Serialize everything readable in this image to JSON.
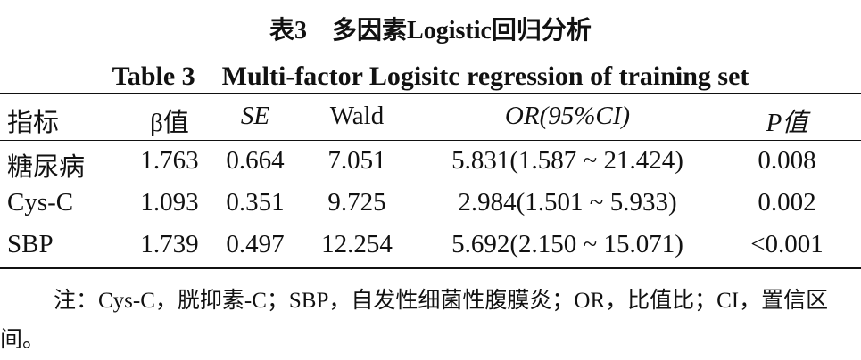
{
  "title_cn": "表3　多因素Logistic回归分析",
  "title_en": "Table 3　Multi-factor Logisitc regression of training set",
  "table": {
    "header": [
      "指标",
      "β值",
      "SE",
      "Wald",
      "OR(95%CI)",
      "P值"
    ],
    "rows": [
      [
        "糖尿病",
        "1.763",
        "0.664",
        "7.051",
        "5.831(1.587 ~ 21.424)",
        "0.008"
      ],
      [
        "Cys-C",
        "1.093",
        "0.351",
        "9.725",
        "2.984(1.501 ~ 5.933)",
        "0.002"
      ],
      [
        "SBP",
        "1.739",
        "0.497",
        "12.254",
        "5.692(2.150 ~ 15.071)",
        "<0.001"
      ]
    ]
  },
  "note": "注：Cys-C，胱抑素-C；SBP，自发性细菌性腹膜炎；OR，比值比；CI，置信区间。"
}
